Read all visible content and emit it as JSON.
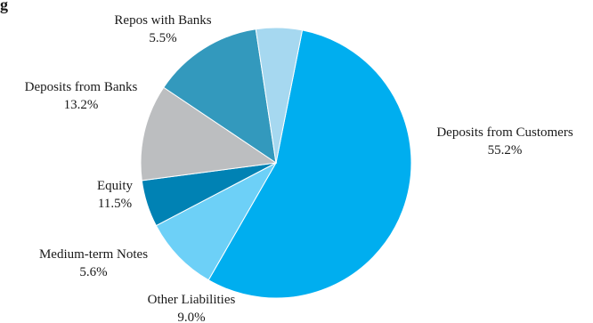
{
  "chart_data": {
    "type": "pie",
    "title_fragment": "g",
    "slices": [
      {
        "label": "Deposits from Customers",
        "value": 55.2,
        "value_label": "55.2%",
        "color": "#00AEEF"
      },
      {
        "label": "Other Liabilities",
        "value": 9.0,
        "value_label": "9.0%",
        "color": "#6DD0F7"
      },
      {
        "label": "Medium-term Notes",
        "value": 5.6,
        "value_label": "5.6%",
        "color": "#0082B4"
      },
      {
        "label": "Equity",
        "value": 11.5,
        "value_label": "11.5%",
        "color": "#BCBEC0"
      },
      {
        "label": "Deposits from Banks",
        "value": 13.2,
        "value_label": "13.2%",
        "color": "#3399BD"
      },
      {
        "label": "Repos with Banks",
        "value": 5.5,
        "value_label": "5.5%",
        "color": "#A6D8F0"
      }
    ]
  }
}
